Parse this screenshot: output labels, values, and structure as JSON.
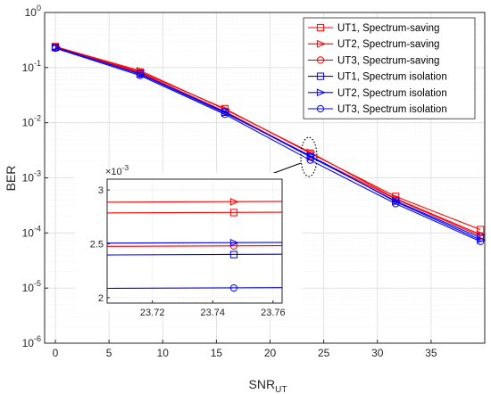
{
  "chart_data": {
    "type": "line",
    "x_scale": "linear",
    "y_scale": "log",
    "xlabel": "SNR",
    "xlabel_sub": "UT",
    "ylabel": "BER",
    "xlim": [
      -1,
      40
    ],
    "ylim": [
      1e-06,
      1
    ],
    "x_ticks": [
      "0",
      "5",
      "10",
      "15",
      "20",
      "25",
      "30",
      "35"
    ],
    "y_ticks": [
      {
        "base": "10",
        "exp": "0"
      },
      {
        "base": "10",
        "exp": "-1"
      },
      {
        "base": "10",
        "exp": "-2"
      },
      {
        "base": "10",
        "exp": "-3"
      },
      {
        "base": "10",
        "exp": "-4"
      },
      {
        "base": "10",
        "exp": "-5"
      },
      {
        "base": "10",
        "exp": "-6"
      }
    ],
    "grid": true,
    "legend_position": "top-right",
    "series": [
      {
        "name": "UT1, Spectrum-saving",
        "color": "#ff0000",
        "marker": "square",
        "x": [
          0,
          7.9,
          15.8,
          23.75,
          31.7,
          39.6
        ],
        "y": [
          0.24,
          0.083,
          0.018,
          0.0028,
          0.00046,
          0.000115
        ]
      },
      {
        "name": "UT2, Spectrum-saving",
        "color": "#ff0000",
        "marker": "triangle-right",
        "x": [
          0,
          7.9,
          15.8,
          23.75,
          31.7,
          39.6
        ],
        "y": [
          0.24,
          0.088,
          0.0175,
          0.0029,
          0.00042,
          9.4e-05
        ]
      },
      {
        "name": "UT3, Spectrum-saving",
        "color": "#ff0000",
        "marker": "circle",
        "x": [
          0,
          7.9,
          15.8,
          23.75,
          31.7,
          39.6
        ],
        "y": [
          0.235,
          0.08,
          0.016,
          0.00248,
          0.00041,
          8.8e-05
        ]
      },
      {
        "name": "UT1, Spectrum isolation",
        "color": "#0000ff",
        "marker": "square",
        "x": [
          0,
          7.9,
          15.8,
          23.75,
          31.7,
          39.6
        ],
        "y": [
          0.232,
          0.077,
          0.0155,
          0.0024,
          0.00038,
          8.2e-05
        ]
      },
      {
        "name": "UT2, Spectrum isolation",
        "color": "#0000ff",
        "marker": "triangle-right",
        "x": [
          0,
          7.9,
          15.8,
          23.75,
          31.7,
          39.6
        ],
        "y": [
          0.232,
          0.076,
          0.015,
          0.00251,
          0.00037,
          7.5e-05
        ]
      },
      {
        "name": "UT3, Spectrum isolation",
        "color": "#0000ff",
        "marker": "circle",
        "x": [
          0,
          7.9,
          15.8,
          23.75,
          31.7,
          39.6
        ],
        "y": [
          0.225,
          0.072,
          0.0142,
          0.00209,
          0.00034,
          7e-05
        ]
      }
    ],
    "inset": {
      "multiplier_base": "×10",
      "multiplier_exp": "-3",
      "xlim": [
        23.705,
        23.763
      ],
      "ylim": [
        1.95,
        3.1
      ],
      "x_ticks": [
        "23.72",
        "23.74",
        "23.76"
      ],
      "y_ticks": [
        "2",
        "2.5",
        "3"
      ],
      "marker_x": 23.747,
      "series_values": [
        2.79,
        2.89,
        2.48,
        2.4,
        2.51,
        2.09
      ]
    }
  }
}
